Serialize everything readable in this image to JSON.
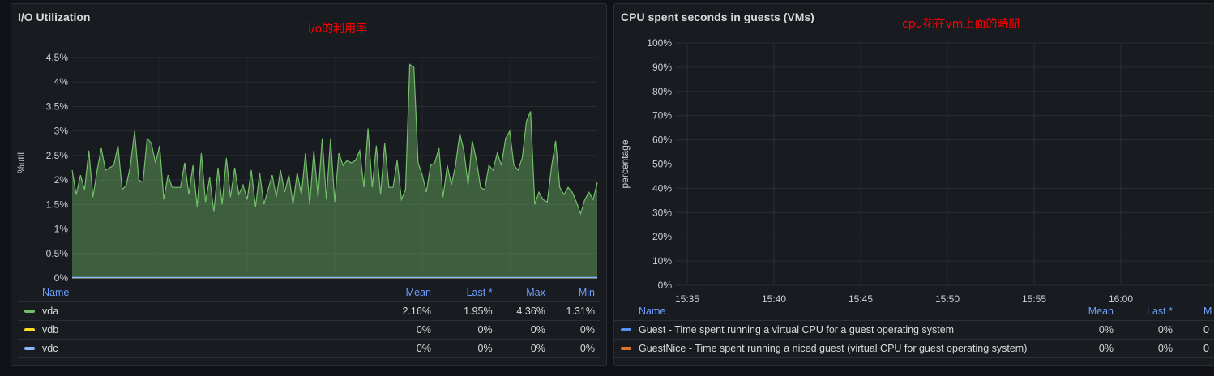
{
  "panels": {
    "io": {
      "title": "I/O Utilization",
      "annotation": "i/o的利用率"
    },
    "cpu": {
      "title": "CPU spent seconds in guests (VMs)",
      "annotation": "cpu花在vm上面的時間"
    }
  },
  "colors": {
    "vda": "#73bf69",
    "vdb": "#fade2a",
    "vdc": "#8ab8ff",
    "guest": "#5794f2",
    "guestnice": "#e0752d",
    "grid": "#2a2d33",
    "header": "#6e9fff"
  },
  "legend_io": {
    "headers": [
      "Name",
      "Mean",
      "Last *",
      "Max",
      "Min"
    ],
    "rows": [
      {
        "name": "vda",
        "mean": "2.16%",
        "last": "1.95%",
        "max": "4.36%",
        "min": "1.31%"
      },
      {
        "name": "vdb",
        "mean": "0%",
        "last": "0%",
        "max": "0%",
        "min": "0%"
      },
      {
        "name": "vdc",
        "mean": "0%",
        "last": "0%",
        "max": "0%",
        "min": "0%"
      }
    ]
  },
  "legend_cpu": {
    "headers": [
      "Name",
      "Mean",
      "Last *",
      "M"
    ],
    "rows": [
      {
        "name": "Guest - Time spent running a virtual CPU for a guest operating system",
        "mean": "0%",
        "last": "0%",
        "max": "0"
      },
      {
        "name": "GuestNice - Time spent running a niced guest (virtual CPU for guest operating system)",
        "mean": "0%",
        "last": "0%",
        "max": "0"
      }
    ]
  },
  "chart_data": [
    {
      "type": "area",
      "title": "I/O Utilization",
      "ylabel": "%util",
      "ylim": [
        0,
        4.5
      ],
      "yticks": [
        "0%",
        "0.5%",
        "1%",
        "1.5%",
        "2%",
        "2.5%",
        "3%",
        "3.5%",
        "4%",
        "4.5%"
      ],
      "grid": true,
      "legend": "bottom",
      "series": [
        {
          "name": "vda",
          "values": [
            2.2,
            1.7,
            2.1,
            1.8,
            2.6,
            1.65,
            2.2,
            2.65,
            2.2,
            2.25,
            2.3,
            2.7,
            1.8,
            1.9,
            2.3,
            3.0,
            2.0,
            1.95,
            2.85,
            2.75,
            2.35,
            2.7,
            1.6,
            2.1,
            1.85,
            1.85,
            1.85,
            2.35,
            1.7,
            2.3,
            1.45,
            2.55,
            1.55,
            2.05,
            1.35,
            2.25,
            1.5,
            2.45,
            1.65,
            2.25,
            1.7,
            1.9,
            1.6,
            2.2,
            1.45,
            2.15,
            1.5,
            1.8,
            2.1,
            1.65,
            2.2,
            1.75,
            2.1,
            1.5,
            2.15,
            1.7,
            2.55,
            1.5,
            2.6,
            1.65,
            2.85,
            1.6,
            2.85,
            1.55,
            2.55,
            2.3,
            2.4,
            2.35,
            2.4,
            2.6,
            1.85,
            3.05,
            1.85,
            2.7,
            1.7,
            2.75,
            1.85,
            1.85,
            2.4,
            1.6,
            1.8,
            4.36,
            4.3,
            2.35,
            2.1,
            1.75,
            2.3,
            2.35,
            2.65,
            1.65,
            2.3,
            1.9,
            2.3,
            2.95,
            2.6,
            1.9,
            2.8,
            2.4,
            1.85,
            1.8,
            2.3,
            2.2,
            2.55,
            2.3,
            2.85,
            3.0,
            2.3,
            2.2,
            2.45,
            3.2,
            3.4,
            1.5,
            1.75,
            1.6,
            1.55,
            2.25,
            2.8,
            1.85,
            1.7,
            1.85,
            1.75,
            1.55,
            1.31,
            1.6,
            1.75,
            1.6,
            1.95
          ]
        },
        {
          "name": "vdb",
          "values": [
            0,
            0
          ]
        },
        {
          "name": "vdc",
          "values": [
            0,
            0
          ]
        }
      ]
    },
    {
      "type": "line",
      "title": "CPU spent seconds in guests (VMs)",
      "ylabel": "percentage",
      "ylim": [
        0,
        100
      ],
      "yticks": [
        "0%",
        "10%",
        "20%",
        "30%",
        "40%",
        "50%",
        "60%",
        "70%",
        "80%",
        "90%",
        "100%"
      ],
      "xticks": [
        "15:35",
        "15:40",
        "15:45",
        "15:50",
        "15:55",
        "16:00"
      ],
      "grid": true,
      "legend": "bottom",
      "series": [
        {
          "name": "Guest - Time spent running a virtual CPU for a guest operating system",
          "values": [
            0,
            0
          ]
        },
        {
          "name": "GuestNice - Time spent running a niced guest (virtual CPU for guest operating system)",
          "values": [
            0,
            0
          ]
        }
      ]
    }
  ]
}
